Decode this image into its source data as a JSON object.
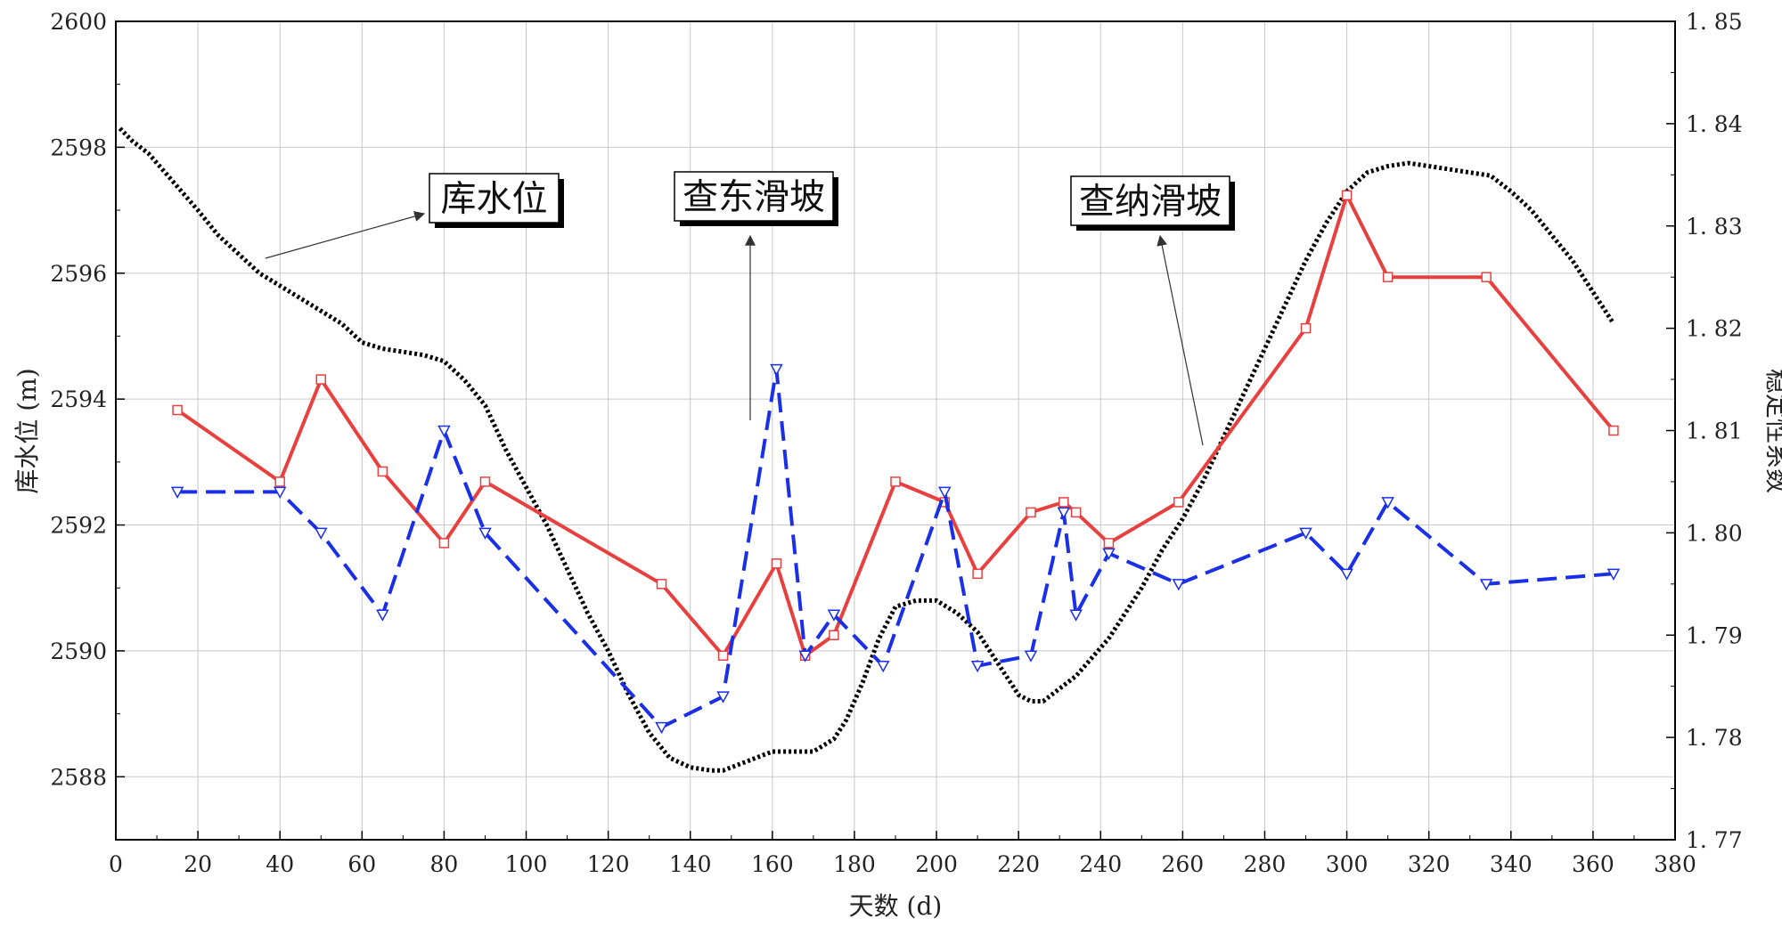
{
  "chart_data": {
    "type": "line",
    "title": "",
    "xlabel": "天数 (d)",
    "ylabel_left": "库水位 (m)",
    "ylabel_right": "稳定性系数",
    "xlim": [
      0,
      380
    ],
    "ylim_left": [
      2587,
      2600
    ],
    "ylim_right": [
      1.77,
      1.85
    ],
    "x_ticks": [
      0,
      20,
      40,
      60,
      80,
      100,
      120,
      140,
      160,
      180,
      200,
      220,
      240,
      260,
      280,
      300,
      320,
      340,
      360,
      380
    ],
    "y_left_ticks": [
      2588,
      2590,
      2592,
      2594,
      2596,
      2598,
      2600
    ],
    "y_right_ticks": [
      "1.77",
      "1.78",
      "1.79",
      "1.80",
      "1.81",
      "1.82",
      "1.83",
      "1.84",
      "1.85"
    ],
    "grid": true,
    "series": [
      {
        "name": "库水位",
        "axis": "left",
        "color": "#000000",
        "style": "dotted-thick",
        "x": [
          1,
          4,
          8,
          12,
          16,
          20,
          25,
          30,
          35,
          40,
          45,
          50,
          55,
          60,
          65,
          70,
          75,
          80,
          85,
          90,
          95,
          100,
          105,
          110,
          115,
          120,
          125,
          130,
          135,
          140,
          145,
          148,
          152,
          156,
          160,
          165,
          170,
          175,
          178,
          182,
          186,
          190,
          195,
          200,
          205,
          210,
          215,
          220,
          223,
          226,
          230,
          234,
          238,
          242,
          246,
          250,
          255,
          260,
          265,
          270,
          275,
          280,
          285,
          290,
          295,
          300,
          305,
          310,
          315,
          320,
          325,
          330,
          335,
          340,
          345,
          350,
          355,
          360,
          365
        ],
        "y": [
          2598.3,
          2598.1,
          2597.9,
          2597.6,
          2597.3,
          2597.0,
          2596.6,
          2596.3,
          2596.0,
          2595.8,
          2595.6,
          2595.4,
          2595.2,
          2594.9,
          2594.8,
          2594.75,
          2594.7,
          2594.6,
          2594.3,
          2593.9,
          2593.2,
          2592.6,
          2592.0,
          2591.3,
          2590.6,
          2590.0,
          2589.3,
          2588.7,
          2588.3,
          2588.15,
          2588.1,
          2588.1,
          2588.2,
          2588.3,
          2588.4,
          2588.4,
          2588.4,
          2588.6,
          2588.9,
          2589.5,
          2590.2,
          2590.7,
          2590.8,
          2590.8,
          2590.6,
          2590.3,
          2589.8,
          2589.3,
          2589.2,
          2589.2,
          2589.4,
          2589.6,
          2589.9,
          2590.2,
          2590.6,
          2591.0,
          2591.6,
          2592.1,
          2592.7,
          2593.4,
          2594.1,
          2594.8,
          2595.5,
          2596.2,
          2596.8,
          2597.3,
          2597.6,
          2597.7,
          2597.75,
          2597.7,
          2597.65,
          2597.6,
          2597.55,
          2597.3,
          2597.0,
          2596.6,
          2596.2,
          2595.7,
          2595.2
        ]
      },
      {
        "name": "查纳滑坡",
        "axis": "right",
        "color": "#e8403f",
        "style": "solid-square",
        "x": [
          15,
          40,
          50,
          65,
          80,
          90,
          133,
          148,
          161,
          168,
          175,
          190,
          202,
          210,
          223,
          231,
          234,
          242,
          259,
          290,
          300,
          310,
          334,
          365
        ],
        "y": [
          1.812,
          1.805,
          1.815,
          1.806,
          1.799,
          1.805,
          1.795,
          1.788,
          1.797,
          1.788,
          1.79,
          1.805,
          1.803,
          1.796,
          1.802,
          1.803,
          1.802,
          1.799,
          1.803,
          1.82,
          1.833,
          1.825,
          1.825,
          1.81
        ]
      },
      {
        "name": "查东滑坡",
        "axis": "right",
        "color": "#1a2fe8",
        "style": "dashed-triangle",
        "x": [
          15,
          40,
          50,
          65,
          80,
          90,
          133,
          148,
          161,
          168,
          175,
          187,
          202,
          210,
          223,
          231,
          234,
          242,
          259,
          290,
          300,
          310,
          334,
          365
        ],
        "y": [
          1.804,
          1.804,
          1.8,
          1.792,
          1.81,
          1.8,
          1.781,
          1.784,
          1.816,
          1.788,
          1.792,
          1.787,
          1.804,
          1.787,
          1.788,
          1.802,
          1.792,
          1.798,
          1.795,
          1.8,
          1.796,
          1.803,
          1.795,
          1.796
        ]
      }
    ],
    "annotations": [
      {
        "text": "库水位",
        "target_series": "库水位"
      },
      {
        "text": "查东滑坡",
        "target_series": "查东滑坡"
      },
      {
        "text": "查纳滑坡",
        "target_series": "查纳滑坡"
      }
    ]
  }
}
